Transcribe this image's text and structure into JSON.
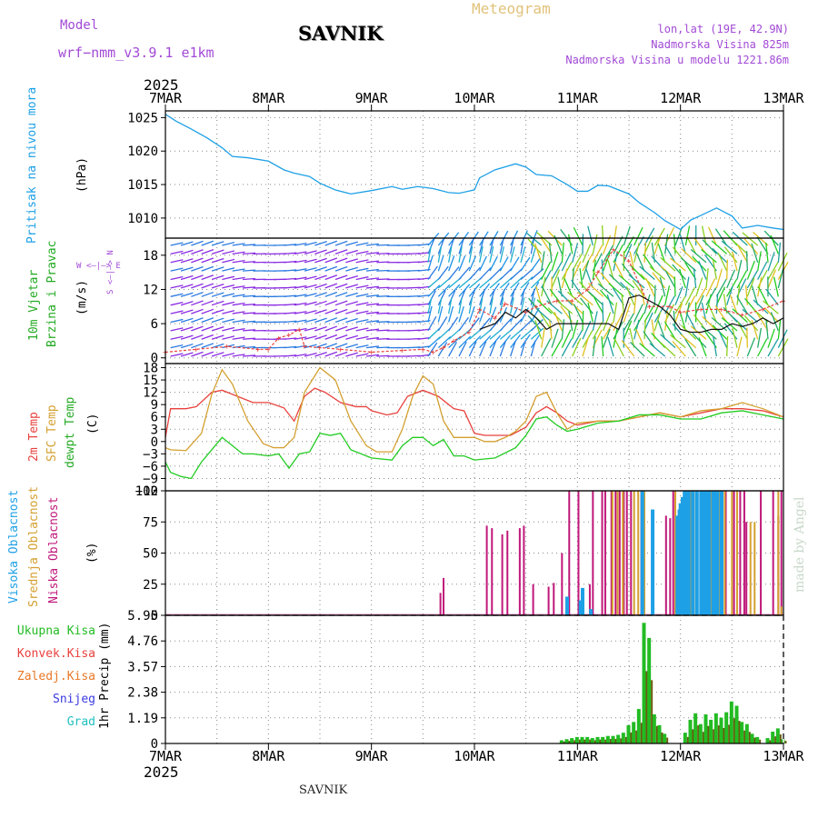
{
  "header": {
    "model_label": "Model",
    "model_name": "wrf−nmm_v3.9.1  e1km",
    "station": "SAVNIK",
    "meteogram": "Meteogram",
    "lonlat": "lon,lat (19E, 42.9N)",
    "elevation": "Nadmorska Visina 825m",
    "model_elevation": "Nadmorska Visina u modelu 1221.86m",
    "year_top": "2025",
    "year_bottom": "2025",
    "footer_station": "SAVNIK",
    "credit": "made by Angel"
  },
  "colors": {
    "pressure": "#1ea0e6",
    "temp2m": "#e8413c",
    "sfc": "#d4a030",
    "dewpt": "#22cc22",
    "high_cloud": "#1ea0e6",
    "mid_cloud": "#d4a030",
    "low_cloud": "#c0187a",
    "total_precip": "#22bb22",
    "conv_precip": "#e8413c",
    "frz_precip": "#e87828",
    "snow": "#3a3ae0",
    "hail": "#20c0c0",
    "wind_dir": "#8a2be2",
    "gust": "#e8413c",
    "wind_mean": "#111111"
  },
  "chart_data": [
    {
      "type": "line",
      "panel": "pressure",
      "ylabel": "Pritisak na nivou mora",
      "unit": "(hPa)",
      "x_ticks": [
        "7MAR",
        "8MAR",
        "9MAR",
        "10MAR",
        "11MAR",
        "12MAR",
        "13MAR"
      ],
      "y_ticks": [
        1010,
        1015,
        1020,
        1025
      ],
      "ylim": [
        1007,
        1026
      ],
      "series": [
        {
          "x": [
            0,
            0.1,
            0.25,
            0.4,
            0.55,
            0.65,
            0.8,
            1.0,
            1.15,
            1.25,
            1.4,
            1.5,
            1.65,
            1.8,
            2.0,
            2.2,
            2.3,
            2.45,
            2.6,
            2.75,
            2.85,
            3.0,
            3.05,
            3.2,
            3.4,
            3.5,
            3.6,
            3.75,
            3.9,
            4.0,
            4.1,
            4.2,
            4.3,
            4.5,
            4.6,
            4.75,
            4.85,
            5.0,
            5.1,
            5.2,
            5.35,
            5.5,
            5.6,
            5.75,
            5.9,
            6.0
          ],
          "y": [
            1025.5,
            1024.5,
            1023.3,
            1022,
            1020.5,
            1019.2,
            1019,
            1018.5,
            1017.2,
            1016.7,
            1016.2,
            1015.2,
            1014.2,
            1013.6,
            1014.1,
            1014.7,
            1014.3,
            1014.7,
            1014.4,
            1013.8,
            1013.7,
            1014.2,
            1016,
            1017.2,
            1018.1,
            1017.6,
            1016.5,
            1016.3,
            1015.0,
            1014.0,
            1014.0,
            1014.9,
            1014.8,
            1013.6,
            1012.3,
            1010.8,
            1009.6,
            1008.3,
            1009.7,
            1010.4,
            1011.5,
            1010.3,
            1008.5,
            1008.9,
            1008.5,
            1008.3
          ]
        }
      ]
    },
    {
      "type": "line",
      "panel": "wind",
      "ylabel": "10m Vjetar",
      "ylabel2": "Brzina i Pravac",
      "unit": "(m/s)",
      "compass": "W <—|—> E",
      "compass_ns": "S <—|—> N",
      "y_ticks": [
        0,
        6,
        12,
        18
      ],
      "ylim": [
        -1,
        21
      ],
      "series": [
        {
          "name": "gust",
          "x": [
            0,
            0.3,
            0.6,
            0.9,
            1.0,
            1.1,
            1.2,
            1.3,
            1.35,
            1.5,
            1.7,
            2.0,
            2.3,
            2.5,
            2.6,
            2.7,
            2.8,
            2.95,
            3.05,
            3.2,
            3.3,
            3.5,
            3.6,
            3.8,
            3.95,
            4.1,
            4.2,
            4.35,
            4.5,
            4.7,
            4.9,
            5.0,
            5.2,
            5.4,
            5.6,
            5.8,
            6.0
          ],
          "y": [
            1,
            1.5,
            2,
            1.5,
            1.5,
            3.5,
            4,
            5,
            2,
            1.8,
            1.5,
            1,
            1.3,
            1.5,
            1,
            1.8,
            3,
            4.5,
            8.5,
            7,
            9.5,
            8,
            9,
            10,
            10,
            12,
            15,
            19,
            17,
            9,
            9,
            8,
            8.5,
            8.5,
            7.5,
            8.5,
            10
          ]
        },
        {
          "name": "mean",
          "x": [
            3.05,
            3.2,
            3.3,
            3.4,
            3.5,
            3.6,
            3.7,
            3.8,
            3.9,
            4.0,
            4.1,
            4.2,
            4.3,
            4.4,
            4.5,
            4.6,
            4.7,
            4.8,
            4.9,
            5.0,
            5.1,
            5.2,
            5.3,
            5.4,
            5.5,
            5.6,
            5.7,
            5.8,
            5.9,
            6.0
          ],
          "y": [
            5,
            6,
            8,
            7,
            8.5,
            7,
            5,
            6,
            6,
            6,
            6,
            6,
            6,
            5,
            10.5,
            11,
            10,
            9,
            7.5,
            5,
            4.5,
            4.5,
            5,
            5,
            6,
            5.5,
            6,
            7,
            6,
            7
          ]
        }
      ]
    },
    {
      "type": "line",
      "panel": "temperature",
      "ylabel": "2m Temp",
      "ylabel2": "SFC Temp",
      "ylabel3": "dewpt Temp",
      "unit": "(C)",
      "y_ticks": [
        -12,
        -9,
        -6,
        -3,
        0,
        3,
        6,
        9,
        12,
        15,
        18
      ],
      "ylim": [
        -12,
        19
      ],
      "series": [
        {
          "name": "2m Temp",
          "x": [
            0,
            0.05,
            0.2,
            0.3,
            0.45,
            0.55,
            0.7,
            0.85,
            0.95,
            1.0,
            1.15,
            1.25,
            1.35,
            1.45,
            1.55,
            1.7,
            1.85,
            1.95,
            2.0,
            2.15,
            2.25,
            2.35,
            2.5,
            2.65,
            2.8,
            2.9,
            3.0,
            3.1,
            3.2,
            3.35,
            3.5,
            3.6,
            3.7,
            3.8,
            3.9,
            4.0,
            4.2,
            4.4,
            4.6,
            4.8,
            5.0,
            5.2,
            5.4,
            5.6,
            5.8,
            6.0
          ],
          "y": [
            1,
            8,
            8,
            8.5,
            12,
            12.5,
            11,
            9.5,
            9.5,
            9.5,
            8.2,
            5,
            11,
            13,
            12,
            9.5,
            8.5,
            8.5,
            7.5,
            6.5,
            7,
            11,
            12.5,
            11,
            8,
            7.5,
            2,
            1.5,
            1.5,
            1.5,
            3.5,
            7,
            8.5,
            7,
            5,
            4,
            5,
            5,
            6,
            7,
            6,
            7,
            8,
            8,
            7.5,
            6
          ]
        },
        {
          "name": "SFC Temp",
          "x": [
            0,
            0.05,
            0.2,
            0.35,
            0.45,
            0.55,
            0.65,
            0.8,
            0.95,
            1.05,
            1.15,
            1.25,
            1.35,
            1.5,
            1.65,
            1.8,
            1.95,
            2.05,
            2.2,
            2.3,
            2.4,
            2.5,
            2.6,
            2.7,
            2.8,
            3.0,
            3.1,
            3.2,
            3.3,
            3.4,
            3.5,
            3.6,
            3.7,
            3.8,
            3.9,
            4.0,
            4.2,
            4.4,
            4.6,
            4.8,
            5.0,
            5.2,
            5.4,
            5.6,
            5.8,
            6.0
          ],
          "y": [
            -1.5,
            -2,
            -2.2,
            2,
            11.5,
            17.5,
            14,
            5,
            -0.5,
            -1.5,
            -1.5,
            1,
            12,
            18,
            15,
            5,
            -1,
            -2.5,
            -2.5,
            3,
            11,
            16,
            14,
            5,
            1,
            1,
            0,
            0,
            1,
            2.5,
            5,
            11,
            12,
            7,
            3,
            4.5,
            5,
            5,
            6,
            7,
            6,
            7.5,
            8,
            9.5,
            8,
            6
          ]
        },
        {
          "name": "dewpt Temp",
          "x": [
            0,
            0.05,
            0.15,
            0.25,
            0.35,
            0.45,
            0.55,
            0.65,
            0.75,
            0.85,
            1.0,
            1.1,
            1.2,
            1.3,
            1.4,
            1.5,
            1.6,
            1.7,
            1.8,
            2.0,
            2.2,
            2.3,
            2.4,
            2.5,
            2.6,
            2.7,
            2.8,
            2.9,
            3.0,
            3.2,
            3.4,
            3.5,
            3.6,
            3.7,
            3.8,
            3.9,
            4.0,
            4.2,
            4.4,
            4.6,
            4.8,
            5.0,
            5.2,
            5.4,
            5.6,
            5.8,
            6.0
          ],
          "y": [
            -5,
            -7.5,
            -8.5,
            -9,
            -5,
            -2,
            1,
            -1,
            -3,
            -3,
            -3.5,
            -3,
            -6.5,
            -3,
            -2.5,
            2,
            1.5,
            2,
            -2,
            -4,
            -4.5,
            -1,
            1,
            1,
            -1,
            0.5,
            -3.5,
            -3.5,
            -4.5,
            -4,
            -1.5,
            1.5,
            5.5,
            6,
            4,
            2.5,
            3,
            4.5,
            5,
            6.5,
            6.5,
            5.5,
            5.5,
            7,
            7.5,
            6.5,
            5.5
          ]
        }
      ]
    },
    {
      "type": "bar",
      "panel": "clouds",
      "ylabel": "Visoka Oblacnost",
      "ylabel2": "Srednja Oblacnost",
      "ylabel3": "Niska Oblacnost",
      "unit": "(%)",
      "y_ticks": [
        0,
        25,
        50,
        75,
        100
      ],
      "ylim": [
        0,
        100
      ],
      "series": [
        {
          "name": "Niska Oblacnost",
          "x": [
            2.67,
            2.7,
            3.12,
            3.17,
            3.27,
            3.32,
            3.44,
            3.48,
            3.57,
            3.72,
            3.77,
            3.85,
            3.92,
            4.01,
            4.12,
            4.15,
            4.24,
            4.27,
            4.33,
            4.37,
            4.41,
            4.45,
            4.48,
            4.52,
            4.62,
            4.86,
            4.9,
            4.93,
            5.25,
            5.35,
            5.44,
            5.52,
            5.58,
            5.62,
            5.64,
            5.78,
            5.9,
            5.95,
            5.98
          ],
          "y": [
            18,
            30,
            72,
            70,
            65,
            68,
            70,
            72,
            25,
            23,
            26,
            50,
            100,
            100,
            25,
            100,
            100,
            100,
            100,
            100,
            100,
            100,
            100,
            100,
            100,
            80,
            78,
            100,
            100,
            100,
            100,
            100,
            100,
            100,
            75,
            100,
            100,
            80,
            100
          ]
        },
        {
          "name": "Srednja Oblacnost",
          "x": [
            4.34,
            4.39,
            4.44,
            4.55,
            4.59,
            4.65,
            4.95,
            5.05,
            5.1,
            5.15,
            5.2,
            5.3,
            5.38,
            5.43,
            5.5,
            5.55,
            5.68,
            5.72,
            5.95,
            5.98
          ],
          "y": [
            100,
            100,
            100,
            100,
            100,
            100,
            100,
            100,
            100,
            100,
            100,
            100,
            100,
            100,
            100,
            100,
            75,
            75,
            100,
            7
          ]
        },
        {
          "name": "Visoka Oblacnost",
          "x": [
            3.9,
            4.03,
            4.05,
            4.13,
            4.63,
            4.73,
            4.97,
            4.99,
            5.0,
            5.02,
            5.04,
            5.06,
            5.08,
            5.12,
            5.16,
            5.2,
            5.22,
            5.24,
            5.26,
            5.28,
            5.32,
            5.34,
            5.36,
            5.4
          ],
          "y": [
            15,
            12,
            22,
            5,
            100,
            85,
            80,
            85,
            90,
            95,
            100,
            100,
            100,
            100,
            100,
            100,
            100,
            100,
            100,
            100,
            100,
            100,
            100,
            100
          ]
        }
      ]
    },
    {
      "type": "bar",
      "panel": "precip",
      "ylabel": "1hr Precip (mm)",
      "legend": [
        "Ukupna Kisa",
        "Konvek.Kisa",
        "Zaledj.Kisa",
        "Snijeg",
        "Grad"
      ],
      "y_ticks": [
        0,
        1.19,
        2.38,
        3.57,
        4.76,
        5.95
      ],
      "ylim": [
        0,
        5.95
      ],
      "series": [
        {
          "name": "Ukupna Kisa",
          "x": [
            3.85,
            3.9,
            3.95,
            4.0,
            4.05,
            4.1,
            4.15,
            4.2,
            4.25,
            4.3,
            4.35,
            4.4,
            4.45,
            4.5,
            4.55,
            4.6,
            4.65,
            4.7,
            4.75,
            4.8,
            4.85,
            5.05,
            5.1,
            5.15,
            5.2,
            5.25,
            5.3,
            5.35,
            5.4,
            5.45,
            5.5,
            5.55,
            5.6,
            5.65,
            5.7,
            5.75,
            5.85,
            5.9,
            5.95,
            6.0
          ],
          "y": [
            0.15,
            0.2,
            0.25,
            0.3,
            0.3,
            0.3,
            0.25,
            0.3,
            0.3,
            0.35,
            0.35,
            0.4,
            0.5,
            0.85,
            1.0,
            1.6,
            5.6,
            4.9,
            1.35,
            0.85,
            0.45,
            0.5,
            1.1,
            1.4,
            0.9,
            1.35,
            1.1,
            1.4,
            1.2,
            1.45,
            1.95,
            1.75,
            1.0,
            0.9,
            0.45,
            0.3,
            0.25,
            0.55,
            0.7,
            0.2
          ]
        }
      ]
    }
  ]
}
